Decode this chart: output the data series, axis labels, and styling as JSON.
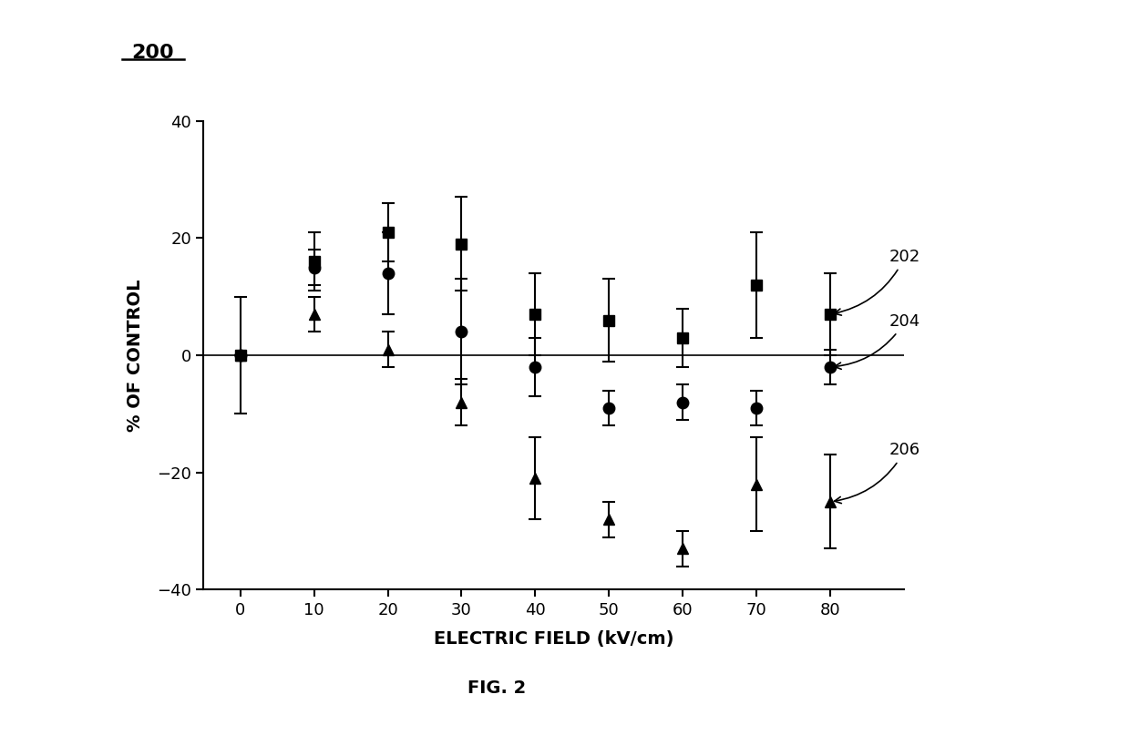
{
  "x": [
    0,
    10,
    20,
    30,
    40,
    50,
    60,
    70,
    80
  ],
  "series_202": {
    "y": [
      0,
      16,
      21,
      19,
      7,
      6,
      3,
      12,
      7
    ],
    "yerr": [
      10,
      5,
      5,
      8,
      7,
      7,
      5,
      9,
      7
    ],
    "label": "202",
    "marker": "s"
  },
  "series_204": {
    "y": [
      0,
      15,
      14,
      4,
      -2,
      -9,
      -8,
      -9,
      -2
    ],
    "yerr": [
      0,
      3,
      7,
      9,
      5,
      3,
      3,
      3,
      3
    ],
    "label": "204",
    "marker": "o"
  },
  "series_206": {
    "y": [
      0,
      7,
      1,
      -8,
      -21,
      -28,
      -33,
      -22,
      -25
    ],
    "yerr": [
      0,
      3,
      3,
      4,
      7,
      3,
      3,
      8,
      8
    ],
    "label": "206",
    "marker": "^"
  },
  "xlabel": "ELECTRIC FIELD (kV/cm)",
  "ylabel": "% OF CONTROL",
  "ylim": [
    -40,
    40
  ],
  "xlim": [
    -5,
    90
  ],
  "yticks": [
    -40,
    -20,
    0,
    20,
    40
  ],
  "xticks": [
    0,
    10,
    20,
    30,
    40,
    50,
    60,
    70,
    80
  ],
  "fig_label": "200",
  "fig_caption": "FIG. 2",
  "line_color": "#000000",
  "background_color": "#ffffff",
  "axis_label_fontsize": 14,
  "tick_fontsize": 13,
  "annotation_fontsize": 13
}
